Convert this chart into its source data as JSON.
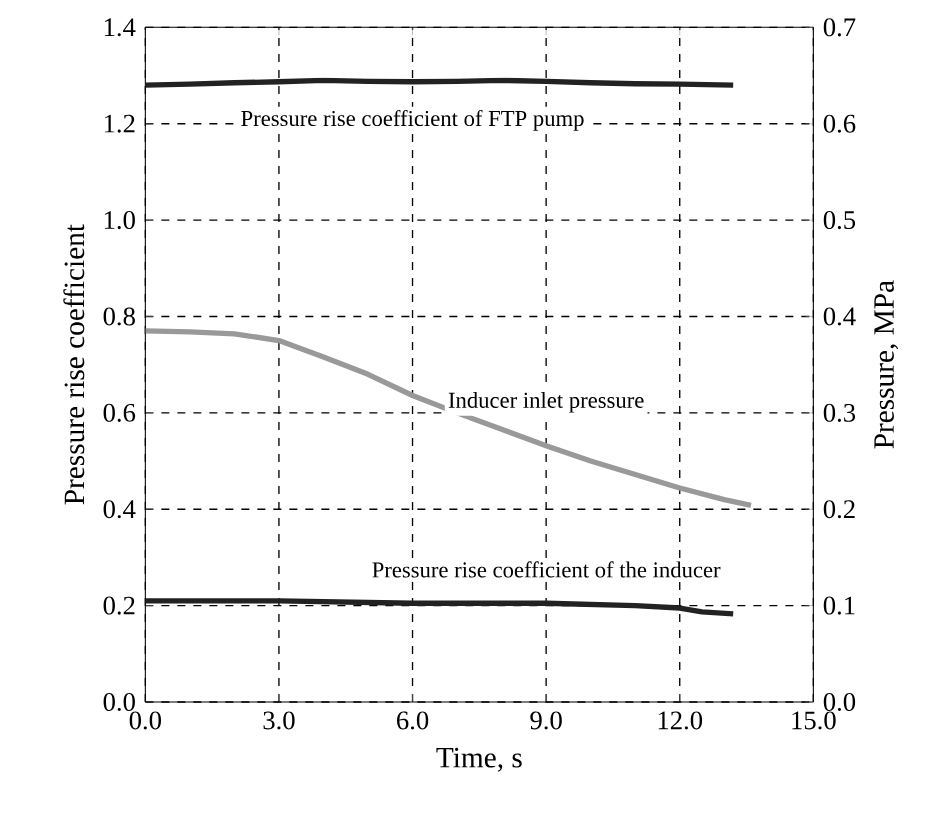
{
  "chart_data": {
    "type": "line",
    "xlabel": "Time, s",
    "ylabel": "Pressure rise coefficient",
    "y2label": "Pressure, MPa",
    "xlim": [
      0,
      15
    ],
    "xticks": [
      {
        "value": 0,
        "label": "0.0"
      },
      {
        "value": 3,
        "label": "3.0"
      },
      {
        "value": 6,
        "label": "6.0"
      },
      {
        "value": 9,
        "label": "9.0"
      },
      {
        "value": 12,
        "label": "12.0"
      },
      {
        "value": 15,
        "label": "15.0"
      }
    ],
    "ylim": [
      0,
      1.4
    ],
    "yticks": [
      {
        "value": 0,
        "label": "0.0"
      },
      {
        "value": 0.2,
        "label": "0.2"
      },
      {
        "value": 0.4,
        "label": "0.4"
      },
      {
        "value": 0.6,
        "label": "0.6"
      },
      {
        "value": 0.8,
        "label": "0.8"
      },
      {
        "value": 1.0,
        "label": "1.0"
      },
      {
        "value": 1.2,
        "label": "1.2"
      },
      {
        "value": 1.4,
        "label": "1.4"
      }
    ],
    "y2lim": [
      0,
      0.7
    ],
    "y2ticks": [
      {
        "value": 0,
        "label": "0.0"
      },
      {
        "value": 0.1,
        "label": "0.1"
      },
      {
        "value": 0.2,
        "label": "0.2"
      },
      {
        "value": 0.3,
        "label": "0.3"
      },
      {
        "value": 0.4,
        "label": "0.4"
      },
      {
        "value": 0.5,
        "label": "0.5"
      },
      {
        "value": 0.6,
        "label": "0.6"
      },
      {
        "value": 0.7,
        "label": "0.7"
      }
    ],
    "grid": true,
    "line_style": "solid",
    "marker": "none",
    "series": [
      {
        "name": "Pressure rise coefficient of FTP pump",
        "color": "#222222",
        "x": [
          0,
          1,
          2,
          3,
          4,
          5,
          6,
          7,
          8,
          9,
          10,
          11,
          12,
          13.2
        ],
        "values": [
          1.28,
          1.282,
          1.285,
          1.287,
          1.29,
          1.288,
          1.287,
          1.288,
          1.29,
          1.288,
          1.285,
          1.283,
          1.282,
          1.28
        ]
      },
      {
        "name": "Inducer inlet pressure",
        "color": "#999999",
        "axis": "y2",
        "x": [
          0,
          1,
          2,
          3,
          4,
          5,
          6,
          7,
          8,
          9,
          10,
          11,
          12,
          13,
          13.6
        ],
        "values": [
          0.385,
          0.384,
          0.382,
          0.375,
          0.358,
          0.34,
          0.318,
          0.3,
          0.283,
          0.266,
          0.25,
          0.236,
          0.222,
          0.21,
          0.204
        ]
      },
      {
        "name": "Pressure rise coefficient of the inducer",
        "color": "#222222",
        "x": [
          0,
          3,
          6,
          9,
          11,
          12,
          12.5,
          13.2
        ],
        "values": [
          0.21,
          0.21,
          0.205,
          0.205,
          0.2,
          0.195,
          0.187,
          0.183
        ]
      }
    ]
  }
}
